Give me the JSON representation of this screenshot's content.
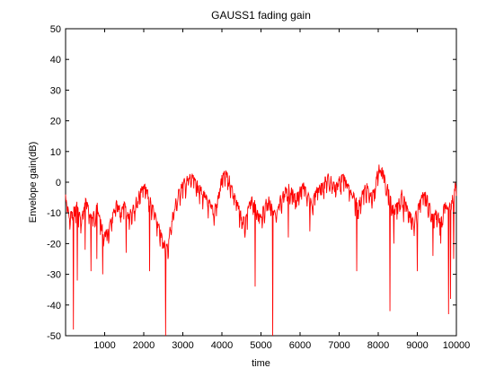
{
  "chart_data": {
    "type": "line",
    "title": "GAUSS1 fading gain",
    "xlabel": "time",
    "ylabel": "Envelope gain(dB)",
    "xlim": [
      0,
      10000
    ],
    "ylim": [
      -50,
      50
    ],
    "xticks": [
      1000,
      2000,
      3000,
      4000,
      5000,
      6000,
      7000,
      8000,
      9000,
      10000
    ],
    "yticks": [
      -50,
      -40,
      -30,
      -20,
      -10,
      0,
      10,
      20,
      30,
      40,
      50
    ],
    "grid": false,
    "legend": "none",
    "colors": {
      "line": "#ff0000",
      "axes": "#000000",
      "background": "#ffffff"
    },
    "series": [
      {
        "x": [
          0,
          100,
          200,
          300,
          400,
          500,
          600,
          700,
          800,
          900,
          1000,
          1100,
          1200,
          1300,
          1400,
          1500,
          1600,
          1700,
          1800,
          1900,
          2000,
          2100,
          2200,
          2300,
          2400,
          2500,
          2600,
          2700,
          2800,
          2900,
          3000,
          3100,
          3200,
          3300,
          3400,
          3500,
          3600,
          3700,
          3800,
          3900,
          4000,
          4100,
          4200,
          4300,
          4400,
          4500,
          4600,
          4700,
          4800,
          4900,
          5000,
          5100,
          5200,
          5300,
          5400,
          5500,
          5600,
          5700,
          5800,
          5900,
          6000,
          6100,
          6200,
          6300,
          6400,
          6500,
          6600,
          6700,
          6800,
          6900,
          7000,
          7100,
          7200,
          7300,
          7400,
          7500,
          7600,
          7700,
          7800,
          7900,
          8000,
          8100,
          8200,
          8300,
          8400,
          8500,
          8600,
          8700,
          8800,
          8900,
          9000,
          9100,
          9200,
          9300,
          9400,
          9500,
          9600,
          9700,
          9800,
          9900,
          10000
        ],
        "values": [
          -4,
          -10,
          -8,
          -6,
          -12,
          -4,
          -8,
          -10,
          -6,
          -12,
          -16,
          -14,
          -10,
          -6,
          -8,
          -6,
          -10,
          -7,
          -5,
          -2,
          0,
          -2,
          -6,
          -10,
          -14,
          -18,
          -20,
          -12,
          -6,
          -2,
          1,
          2,
          3,
          2,
          0,
          -2,
          -4,
          -6,
          -8,
          -4,
          3,
          4,
          2,
          -2,
          -6,
          -10,
          -12,
          -6,
          -4,
          -8,
          -10,
          -6,
          -4,
          -8,
          -10,
          -4,
          -2,
          0,
          -2,
          -4,
          -1,
          0,
          -3,
          -6,
          -2,
          0,
          1,
          3,
          2,
          0,
          2,
          3,
          1,
          -2,
          -4,
          -6,
          -2,
          0,
          -3,
          -2,
          6,
          5,
          2,
          -4,
          -8,
          -6,
          -2,
          -6,
          -8,
          -12,
          -8,
          -4,
          -2,
          -6,
          -10,
          -8,
          -12,
          -6,
          -8,
          -4,
          2
        ],
        "dips": [
          {
            "x": 200,
            "y": -48
          },
          {
            "x": 300,
            "y": -32
          },
          {
            "x": 500,
            "y": -22
          },
          {
            "x": 650,
            "y": -29
          },
          {
            "x": 800,
            "y": -25
          },
          {
            "x": 950,
            "y": -30
          },
          {
            "x": 1100,
            "y": -20
          },
          {
            "x": 1550,
            "y": -23
          },
          {
            "x": 2150,
            "y": -29
          },
          {
            "x": 2560,
            "y": -50
          },
          {
            "x": 2620,
            "y": -25
          },
          {
            "x": 4850,
            "y": -34
          },
          {
            "x": 5300,
            "y": -50
          },
          {
            "x": 5700,
            "y": -18
          },
          {
            "x": 6250,
            "y": -16
          },
          {
            "x": 7450,
            "y": -29
          },
          {
            "x": 8300,
            "y": -42
          },
          {
            "x": 8400,
            "y": -20
          },
          {
            "x": 8650,
            "y": -13
          },
          {
            "x": 9000,
            "y": -29
          },
          {
            "x": 9400,
            "y": -24
          },
          {
            "x": 9600,
            "y": -20
          },
          {
            "x": 9800,
            "y": -43
          },
          {
            "x": 9850,
            "y": -38
          },
          {
            "x": 9930,
            "y": -25
          }
        ]
      }
    ]
  }
}
